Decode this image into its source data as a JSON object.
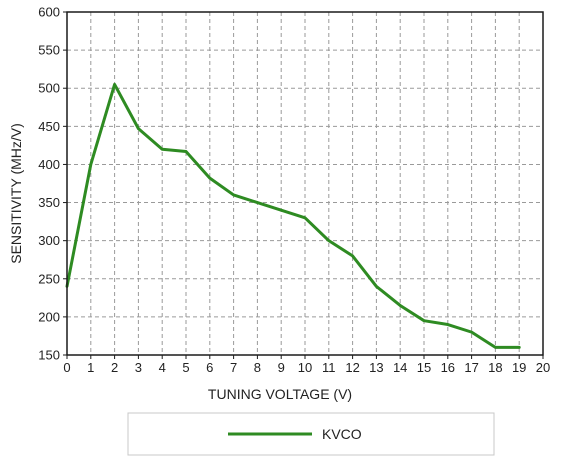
{
  "chart_data": {
    "type": "line",
    "title": "",
    "xlabel": "TUNING VOLTAGE (V)",
    "ylabel": "SENSITIVITY (MHz/V)",
    "xlim": [
      0,
      20
    ],
    "ylim": [
      150,
      600
    ],
    "x_ticks": [
      0,
      1,
      2,
      3,
      4,
      5,
      6,
      7,
      8,
      9,
      10,
      11,
      12,
      13,
      14,
      15,
      16,
      17,
      18,
      19,
      20
    ],
    "y_ticks": [
      150,
      200,
      250,
      300,
      350,
      400,
      450,
      500,
      550,
      600
    ],
    "grid": true,
    "grid_style": "dashed",
    "legend_position": "bottom",
    "series": [
      {
        "name": "KVCO",
        "color": "#2e8b22",
        "x": [
          0,
          1,
          2,
          3,
          4,
          5,
          6,
          7,
          8,
          9,
          10,
          11,
          12,
          13,
          14,
          15,
          16,
          17,
          18,
          19
        ],
        "y": [
          240,
          400,
          505,
          447,
          420,
          417,
          382,
          360,
          350,
          340,
          330,
          300,
          280,
          240,
          215,
          195,
          190,
          180,
          160,
          160
        ]
      }
    ]
  }
}
